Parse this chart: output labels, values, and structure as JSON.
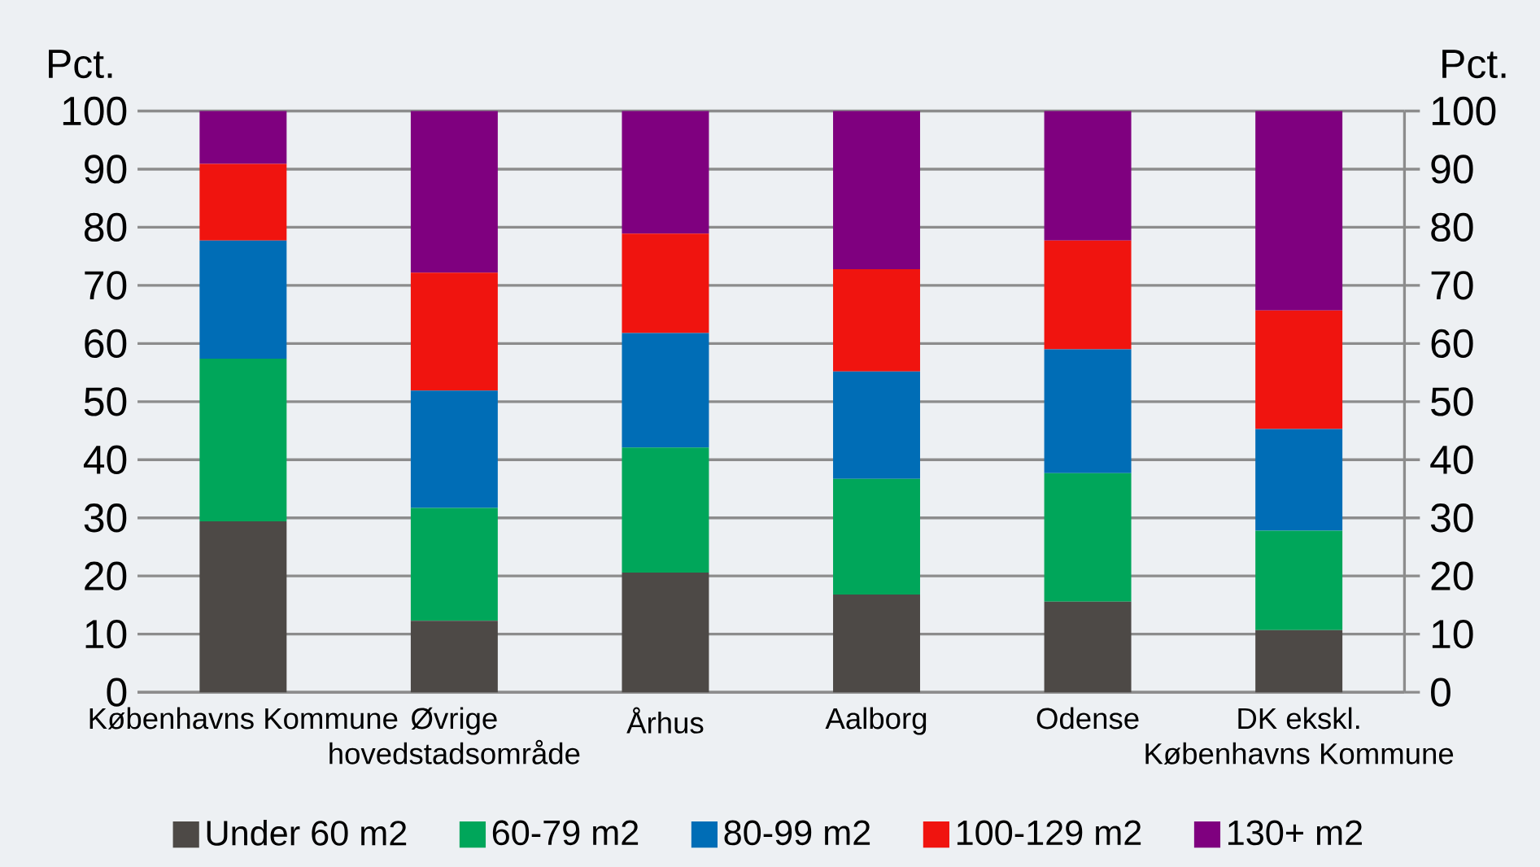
{
  "chart_data": {
    "type": "bar",
    "stacked": true,
    "ylabel": "Pct.",
    "y2label": "Pct.",
    "categories": [
      "Københavns Kommune",
      "Øvrige hovedstadsområde",
      "Århus",
      "Aalborg",
      "Odense",
      "DK ekskl. Københavns Kommune"
    ],
    "series": [
      {
        "name": "Under 60 m2",
        "color": "#4d4946",
        "values": [
          29.4,
          12.3,
          20.6,
          16.8,
          15.6,
          10.7
        ]
      },
      {
        "name": "60-79 m2",
        "color": "#00a65a",
        "values": [
          28.0,
          19.4,
          21.5,
          19.9,
          22.1,
          17.1
        ]
      },
      {
        "name": "80-99 m2",
        "color": "#006db6",
        "values": [
          20.3,
          20.2,
          19.7,
          18.5,
          21.3,
          17.5
        ]
      },
      {
        "name": "100-129 m2",
        "color": "#f0140f",
        "values": [
          13.2,
          20.3,
          17.1,
          17.6,
          18.7,
          20.4
        ]
      },
      {
        "name": "130+ m2",
        "color": "#7f007f",
        "values": [
          9.1,
          27.8,
          21.1,
          27.2,
          22.3,
          34.3
        ]
      }
    ],
    "ylim": [
      0,
      100
    ],
    "yticks": [
      0,
      10,
      20,
      30,
      40,
      50,
      60,
      70,
      80,
      90,
      100
    ],
    "y2lim": [
      0,
      100
    ],
    "y2ticks": [
      0,
      10,
      20,
      30,
      40,
      50,
      60,
      70,
      80,
      90,
      100
    ],
    "grid": "y",
    "legend": "bottom"
  }
}
